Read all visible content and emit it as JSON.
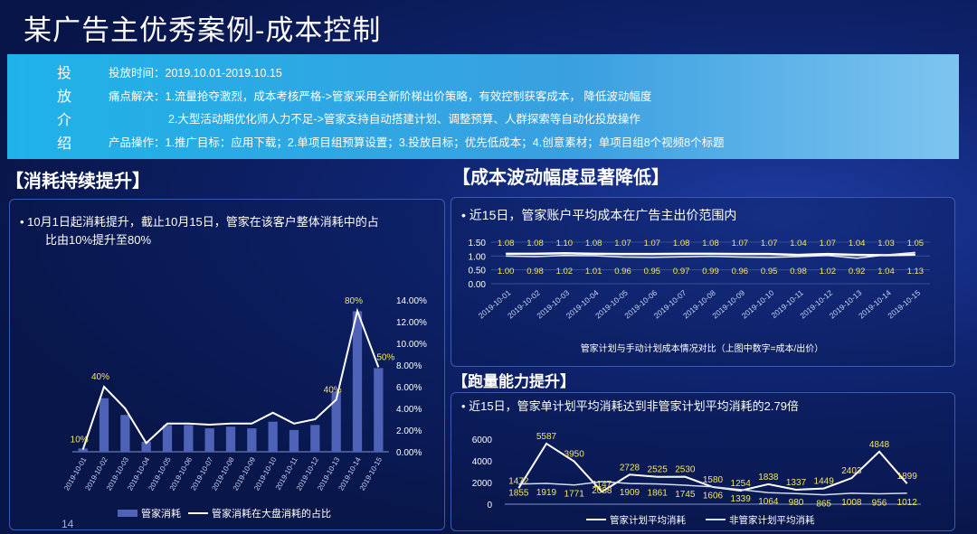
{
  "title": "某广告主优秀案例-成本控制",
  "banner": {
    "vertical_label": [
      "投",
      "放",
      "介",
      "绍"
    ],
    "lines": [
      "投放时间：2019.10.01-2019.10.15",
      "痛点解决：1.流量抢夺激烈，成本考核严格->管家采用全新阶梯出价策略，有效控制获客成本， 降低波动幅度",
      "2.大型活动期优化师人力不足->管家支持自动搭建计划、调整预算、人群探索等自动化投放操作",
      "产品操作：1.推广目标：应用下载；2.单项目组预算设置；3.投放目标；优先低成本；4.创意素材；单项目组8个视频8个标题"
    ]
  },
  "left": {
    "section_title": "【消耗持续提升】",
    "note_line1": "•    10月1日起消耗提升，截止10月15日，管家在该客户整体消耗中的占",
    "note_line2": "比由10%提升至80%",
    "legend_bar": "管家消耗",
    "legend_line": "管家消耗在大盘消耗的占比"
  },
  "right_top": {
    "section_title": "【成本波动幅度显著降低】",
    "note": "•   近15日，管家账户平均成本在广告主出价范围内",
    "caption": "管家计划与手动计划成本情况对比（上图中数字=成本/出价）"
  },
  "right_bottom": {
    "section_title": "【跑量能力提升】",
    "note": "•   近15日，管家单计划平均消耗达到非管家计划平均消耗的2.79倍",
    "legend_a": "管家计划平均消耗",
    "legend_b": "非管家计划平均消耗"
  },
  "page_number": "14",
  "chart_data": [
    {
      "type": "bar",
      "categories": [
        "2019-10-01",
        "2019-10-02",
        "2019-10-03",
        "2019-10-04",
        "2019-10-05",
        "2019-10-06",
        "2019-10-07",
        "2019-10-08",
        "2019-10-09",
        "2019-10-10",
        "2019-10-11",
        "2019-10-12",
        "2019-10-13",
        "2019-10-14",
        "2019-10-15"
      ],
      "series": [
        {
          "name": "管家消耗",
          "values": [
            1,
            16,
            11,
            3,
            8,
            8,
            7,
            7.5,
            7,
            9,
            6.5,
            8,
            18,
            42,
            25
          ]
        },
        {
          "name": "管家消耗在大盘消耗的占比",
          "type": "line",
          "values": [
            0.2,
            6.0,
            4.0,
            0.8,
            2.6,
            2.6,
            2.5,
            2.6,
            2.6,
            3.6,
            2.6,
            3.0,
            4.8,
            13.0,
            7.8
          ]
        }
      ],
      "y2ticks": [
        "0.00%",
        "2.00%",
        "4.00%",
        "6.00%",
        "8.00%",
        "10.00%",
        "12.00%",
        "14.00%"
      ],
      "y2lim": [
        0,
        14
      ],
      "annotations": [
        {
          "category": "2019-10-01",
          "text": "10%"
        },
        {
          "category": "2019-10-02",
          "text": "40%"
        },
        {
          "category": "2019-10-13",
          "text": "40%"
        },
        {
          "category": "2019-10-14",
          "text": "80%"
        },
        {
          "category": "2019-10-15",
          "text": "50%"
        }
      ]
    },
    {
      "type": "line",
      "categories": [
        "2019-10-01",
        "2019-10-02",
        "2019-10-03",
        "2019-10-04",
        "2019-10-05",
        "2019-10-06",
        "2019-10-07",
        "2019-10-08",
        "2019-10-09",
        "2019-10-10",
        "2019-10-11",
        "2019-10-12",
        "2019-10-13",
        "2019-10-14",
        "2019-10-15"
      ],
      "series": [
        {
          "values": [
            1.08,
            1.08,
            1.1,
            1.08,
            1.07,
            1.07,
            1.08,
            1.08,
            1.07,
            1.07,
            1.04,
            1.07,
            1.04,
            1.03,
            1.05
          ],
          "labels": [
            "1.08",
            "1.08",
            "1.10",
            "1.08",
            "1.07",
            "1.07",
            "1.08",
            "1.08",
            "1.07",
            "1.07",
            "1.04",
            "1.07",
            "1.04",
            "1.03",
            "1.05"
          ]
        },
        {
          "values": [
            1.0,
            0.98,
            1.02,
            1.01,
            0.96,
            0.95,
            0.97,
            0.99,
            0.96,
            0.95,
            0.98,
            1.02,
            0.92,
            1.04,
            1.13
          ],
          "labels": [
            "1.00",
            "0.98",
            "1.02",
            "1.01",
            "0.96",
            "0.95",
            "0.97",
            "0.99",
            "0.96",
            "0.95",
            "0.98",
            "1.02",
            "0.92",
            "1.04",
            "1.13"
          ]
        }
      ],
      "yticks": [
        "0.00",
        "0.50",
        "1.00",
        "1.50"
      ],
      "ylim": [
        0,
        1.5
      ]
    },
    {
      "type": "line",
      "series": [
        {
          "name": "管家计划平均消耗",
          "values": [
            1472,
            5587,
            3950,
            1147,
            2728,
            2525,
            2530,
            1580,
            1254,
            1838,
            1337,
            1449,
            2403,
            4848,
            1899
          ]
        },
        {
          "name": "非管家计划平均消耗",
          "values": [
            1855,
            1919,
            1771,
            2088,
            1909,
            1861,
            1745,
            1606,
            1339,
            1064,
            980,
            865,
            1008,
            956,
            1012
          ]
        }
      ],
      "yticks": [
        "0",
        "2000",
        "4000",
        "6000"
      ],
      "ylim": [
        0,
        6000
      ]
    }
  ]
}
